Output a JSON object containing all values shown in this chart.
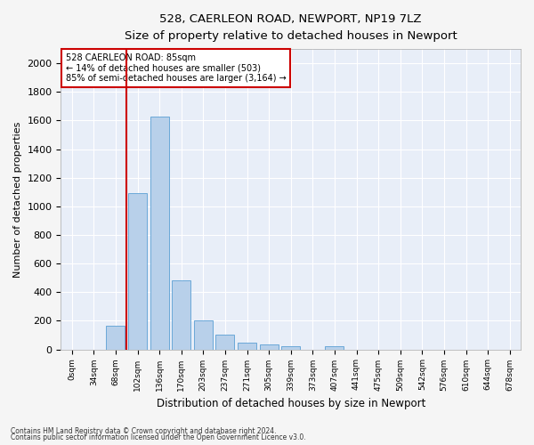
{
  "title": "528, CAERLEON ROAD, NEWPORT, NP19 7LZ",
  "subtitle": "Size of property relative to detached houses in Newport",
  "xlabel": "Distribution of detached houses by size in Newport",
  "ylabel": "Number of detached properties",
  "bar_color": "#b8d0ea",
  "bar_edge_color": "#5a9fd4",
  "fig_bg_color": "#f5f5f5",
  "ax_bg_color": "#e8eef8",
  "grid_color": "#ffffff",
  "property_size_idx": 2.5,
  "annotation_text": "528 CAERLEON ROAD: 85sqm\n← 14% of detached houses are smaller (503)\n85% of semi-detached houses are larger (3,164) →",
  "red_line_color": "#cc0000",
  "annotation_box_color": "#cc0000",
  "footnote1": "Contains HM Land Registry data © Crown copyright and database right 2024.",
  "footnote2": "Contains public sector information licensed under the Open Government Licence v3.0.",
  "bin_labels": [
    "0sqm",
    "34sqm",
    "68sqm",
    "102sqm",
    "136sqm",
    "170sqm",
    "203sqm",
    "237sqm",
    "271sqm",
    "305sqm",
    "339sqm",
    "373sqm",
    "407sqm",
    "441sqm",
    "475sqm",
    "509sqm",
    "542sqm",
    "576sqm",
    "610sqm",
    "644sqm",
    "678sqm"
  ],
  "counts": [
    0,
    0,
    165,
    1090,
    1630,
    480,
    200,
    105,
    45,
    35,
    22,
    0,
    20,
    0,
    0,
    0,
    0,
    0,
    0,
    0,
    0
  ],
  "ylim": [
    0,
    2100
  ],
  "yticks": [
    0,
    200,
    400,
    600,
    800,
    1000,
    1200,
    1400,
    1600,
    1800,
    2000
  ]
}
